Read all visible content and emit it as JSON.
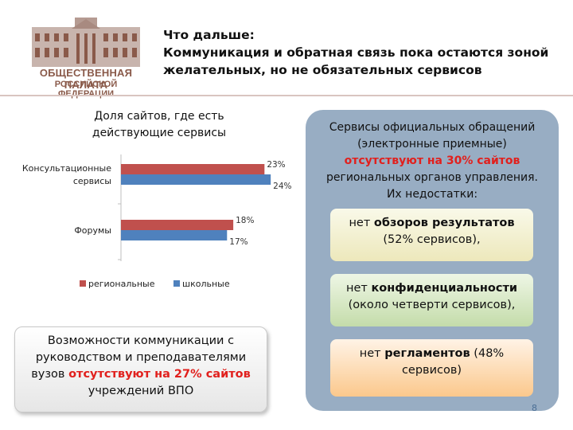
{
  "logo": {
    "line1": "ОБЩЕСТВЕННАЯ ПАЛАТА",
    "line2": "РОССИЙСКОЙ ФЕДЕРАЦИИ",
    "color": "#8a5a4a"
  },
  "header": {
    "line1": "Что дальше:",
    "line2": "Коммуникация и обратная связь пока остаются зоной",
    "line3": "желательных, но не обязательных сервисов"
  },
  "chart": {
    "title_line1": "Доля сайтов, где есть",
    "title_line2": "действующие сервисы"
  },
  "chart_data": {
    "type": "bar",
    "orientation": "horizontal",
    "categories": [
      "Консультационные сервисы",
      "Форумы"
    ],
    "category_lines": [
      [
        "Консультационные",
        "сервисы"
      ],
      [
        "Форумы"
      ]
    ],
    "series": [
      {
        "name": "региональные",
        "color": "#c0504d",
        "values": [
          23,
          18
        ],
        "labels": [
          "23%",
          "18%"
        ]
      },
      {
        "name": "школьные",
        "color": "#4f81bd",
        "values": [
          24,
          17
        ],
        "labels": [
          "24%",
          "17%"
        ]
      }
    ],
    "xlim": [
      0,
      25
    ],
    "legend": "bottom",
    "grid": false
  },
  "left_box": {
    "line1": "Возможности коммуникации с",
    "line2": "руководством и преподавателями",
    "line3_pre": "вузов ",
    "line3_red": "отсутствуют на 27% сайтов",
    "line4": "учреждений ВПО"
  },
  "panel": {
    "line1": "Сервисы официальных обращений",
    "line2": "(электронные приемные)",
    "line3_red": "отсутствуют на 30% сайтов",
    "line4": "региональных органов управления.",
    "line5": "Их недостатки:",
    "color": "#98adc3"
  },
  "boxes": [
    {
      "pre": "нет ",
      "bold": "обзоров результатов",
      "rest": "(52% сервисов),"
    },
    {
      "pre": "нет ",
      "bold": "конфиденциальности",
      "rest": "(около четверти сервисов),"
    },
    {
      "pre": "нет ",
      "bold": "регламентов",
      "rest1": " (48%",
      "rest": "сервисов)"
    }
  ],
  "page_number": "8",
  "accent_red": "#e1201d"
}
